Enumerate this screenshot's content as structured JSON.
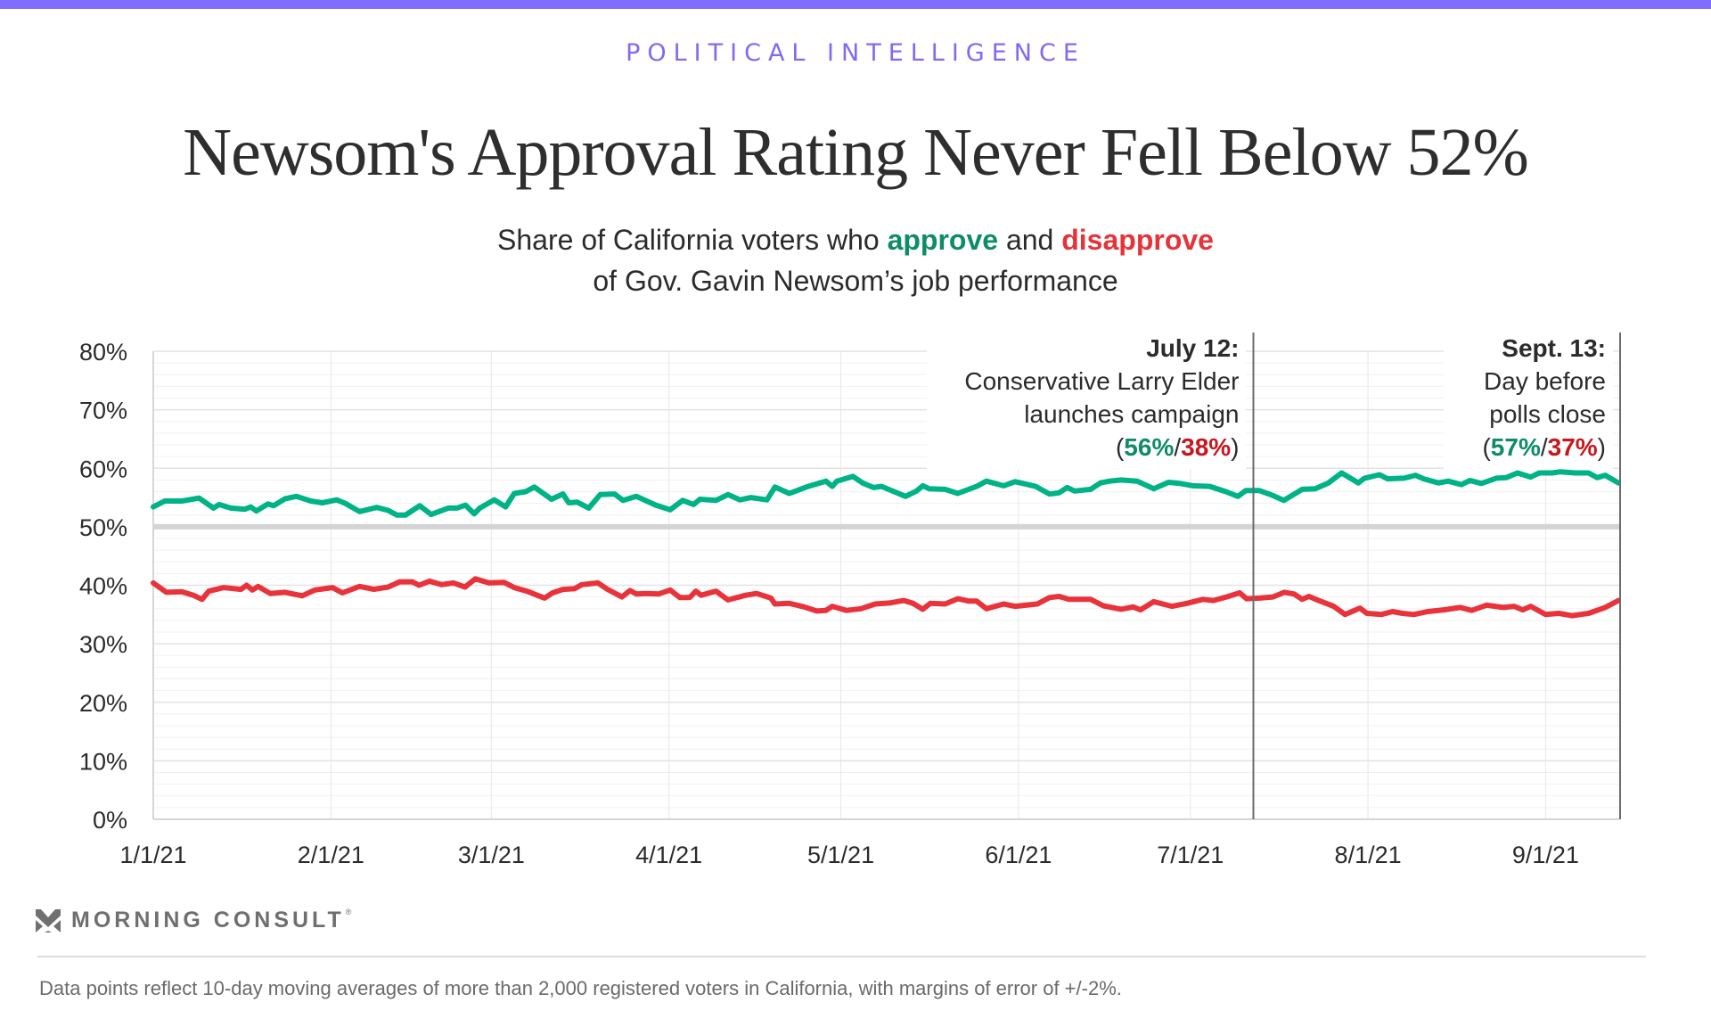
{
  "header": {
    "kicker": "POLITICAL INTELLIGENCE",
    "title": "Newsom's Approval Rating Never Fell Below 52%",
    "subtitle_part1": "Share of California voters who ",
    "subtitle_approve": "approve",
    "subtitle_part2": " and ",
    "subtitle_disapprove": "disapprove",
    "subtitle_line2": "of Gov. Gavin Newsom’s job performance"
  },
  "colors": {
    "accent": "#806CFF",
    "approve_line": "#00B386",
    "disapprove_line": "#E8333B",
    "approve_text": "#0E8C68",
    "disapprove_text": "#C8161E",
    "reference_line": "#d4d4d4"
  },
  "chart_data": {
    "type": "line",
    "title": "Newsom's Approval Rating Never Fell Below 52%",
    "xlabel": "",
    "ylabel": "",
    "x_unit": "days since 1/1/21",
    "xlim": [
      0,
      256
    ],
    "ylim": [
      0,
      80
    ],
    "yticks": [
      0,
      10,
      20,
      30,
      40,
      50,
      60,
      70,
      80
    ],
    "ytick_labels": [
      "0%",
      "10%",
      "20%",
      "30%",
      "40%",
      "50%",
      "60%",
      "70%",
      "80%"
    ],
    "xticks": [
      0,
      31,
      59,
      90,
      120,
      151,
      181,
      212,
      243
    ],
    "xtick_labels": [
      "1/1/21",
      "2/1/21",
      "3/1/21",
      "4/1/21",
      "5/1/21",
      "6/1/21",
      "7/1/21",
      "8/1/21",
      "9/1/21"
    ],
    "grid": true,
    "minor_grid_step": 2,
    "reference_line_y": 50,
    "legend": "none",
    "series": [
      {
        "name": "Approve",
        "color": "#00B386",
        "points": [
          [
            0,
            53.4
          ],
          [
            2,
            54.4
          ],
          [
            5,
            54.4
          ],
          [
            8,
            54.9
          ],
          [
            10.5,
            53.2
          ],
          [
            11.5,
            53.8
          ],
          [
            13.5,
            53.2
          ],
          [
            16,
            53.0
          ],
          [
            17,
            53.4
          ],
          [
            18,
            52.7
          ],
          [
            20,
            53.9
          ],
          [
            21,
            53.6
          ],
          [
            23,
            54.8
          ],
          [
            25,
            55.2
          ],
          [
            27.5,
            54.4
          ],
          [
            29.5,
            54.1
          ],
          [
            32,
            54.6
          ],
          [
            33.5,
            54.0
          ],
          [
            36,
            52.6
          ],
          [
            39,
            53.3
          ],
          [
            41,
            52.8
          ],
          [
            42.5,
            52.0
          ],
          [
            44,
            52.0
          ],
          [
            46.5,
            53.6
          ],
          [
            48.5,
            52.1
          ],
          [
            51.5,
            53.2
          ],
          [
            53,
            53.2
          ],
          [
            54.5,
            53.7
          ],
          [
            56,
            52.2
          ],
          [
            57,
            53.2
          ],
          [
            59.5,
            54.6
          ],
          [
            61.5,
            53.4
          ],
          [
            63,
            55.7
          ],
          [
            65,
            56.0
          ],
          [
            66.5,
            56.8
          ],
          [
            69.5,
            54.7
          ],
          [
            71.5,
            55.6
          ],
          [
            72.5,
            54.1
          ],
          [
            74,
            54.2
          ],
          [
            76,
            53.2
          ],
          [
            78,
            55.5
          ],
          [
            80.5,
            55.6
          ],
          [
            82,
            54.5
          ],
          [
            84.3,
            55.2
          ],
          [
            87.7,
            53.7
          ],
          [
            90.2,
            52.9
          ],
          [
            92.4,
            54.5
          ],
          [
            94.3,
            53.8
          ],
          [
            95.4,
            54.7
          ],
          [
            98.2,
            54.5
          ],
          [
            100.3,
            55.5
          ],
          [
            102.4,
            54.6
          ],
          [
            104.3,
            55.0
          ],
          [
            107.1,
            54.6
          ],
          [
            108.5,
            56.8
          ],
          [
            111,
            55.7
          ],
          [
            114.3,
            56.9
          ],
          [
            117.4,
            57.8
          ],
          [
            118.5,
            56.9
          ],
          [
            119.3,
            57.8
          ],
          [
            122.1,
            58.6
          ],
          [
            123.8,
            57.5
          ],
          [
            125.7,
            56.7
          ],
          [
            127.1,
            56.9
          ],
          [
            131.3,
            55.2
          ],
          [
            133.2,
            56.1
          ],
          [
            134.3,
            57.0
          ],
          [
            135.4,
            56.5
          ],
          [
            138.2,
            56.4
          ],
          [
            140.4,
            55.7
          ],
          [
            143.7,
            56.9
          ],
          [
            145.4,
            57.8
          ],
          [
            148.4,
            57.0
          ],
          [
            150.4,
            57.7
          ],
          [
            154,
            56.9
          ],
          [
            156.4,
            55.6
          ],
          [
            158.1,
            55.8
          ],
          [
            159.5,
            56.7
          ],
          [
            160.8,
            56.1
          ],
          [
            163.6,
            56.4
          ],
          [
            165.3,
            57.5
          ],
          [
            166.9,
            57.8
          ],
          [
            168.9,
            58.0
          ],
          [
            171.7,
            57.8
          ],
          [
            174.6,
            56.5
          ],
          [
            177.2,
            57.6
          ],
          [
            179.2,
            57.4
          ],
          [
            181.5,
            57.0
          ],
          [
            184.4,
            56.9
          ],
          [
            187.2,
            56.0
          ],
          [
            189.3,
            55.2
          ],
          [
            190.7,
            56.2
          ],
          [
            193,
            56.2
          ],
          [
            195,
            55.5
          ],
          [
            197.3,
            54.5
          ],
          [
            200.5,
            56.4
          ],
          [
            202.8,
            56.5
          ],
          [
            205.1,
            57.5
          ],
          [
            207.4,
            59.2
          ],
          [
            210.3,
            57.5
          ],
          [
            211.4,
            58.3
          ],
          [
            214,
            58.9
          ],
          [
            215.4,
            58.2
          ],
          [
            218.3,
            58.3
          ],
          [
            220.3,
            58.8
          ],
          [
            221.7,
            58.2
          ],
          [
            224.3,
            57.5
          ],
          [
            226,
            57.8
          ],
          [
            228.3,
            57.2
          ],
          [
            229.8,
            57.9
          ],
          [
            231.8,
            57.4
          ],
          [
            234.4,
            58.3
          ],
          [
            236.1,
            58.4
          ],
          [
            238.1,
            59.2
          ],
          [
            240.4,
            58.5
          ],
          [
            241.9,
            59.2
          ],
          [
            244.1,
            59.2
          ],
          [
            245.6,
            59.4
          ],
          [
            248.2,
            59.2
          ],
          [
            250.5,
            59.2
          ],
          [
            252,
            58.4
          ],
          [
            253.4,
            58.8
          ],
          [
            255.7,
            57.5
          ]
        ]
      },
      {
        "name": "Disapprove",
        "color": "#E8333B",
        "points": [
          [
            0,
            40.4
          ],
          [
            2.3,
            38.8
          ],
          [
            5,
            38.9
          ],
          [
            7,
            38.3
          ],
          [
            8.5,
            37.6
          ],
          [
            9.7,
            39.0
          ],
          [
            12.3,
            39.6
          ],
          [
            15.3,
            39.3
          ],
          [
            16.3,
            40.0
          ],
          [
            17.3,
            39.2
          ],
          [
            18.3,
            39.8
          ],
          [
            20.4,
            38.6
          ],
          [
            23,
            38.8
          ],
          [
            26,
            38.2
          ],
          [
            28.2,
            39.2
          ],
          [
            31.3,
            39.6
          ],
          [
            33,
            38.7
          ],
          [
            36,
            39.8
          ],
          [
            38.5,
            39.3
          ],
          [
            41,
            39.7
          ],
          [
            43,
            40.6
          ],
          [
            45.2,
            40.6
          ],
          [
            46.4,
            40.0
          ],
          [
            48.2,
            40.7
          ],
          [
            50.3,
            40.1
          ],
          [
            52.4,
            40.4
          ],
          [
            54.4,
            39.7
          ],
          [
            56.2,
            41.1
          ],
          [
            58.6,
            40.4
          ],
          [
            61.2,
            40.5
          ],
          [
            63,
            39.6
          ],
          [
            65.2,
            39.0
          ],
          [
            68.3,
            37.8
          ],
          [
            69.7,
            38.7
          ],
          [
            71.5,
            39.3
          ],
          [
            73.5,
            39.4
          ],
          [
            74.8,
            40.1
          ],
          [
            77.6,
            40.4
          ],
          [
            79.3,
            39.3
          ],
          [
            81.8,
            38.0
          ],
          [
            83.2,
            39.1
          ],
          [
            84.3,
            38.5
          ],
          [
            86,
            38.6
          ],
          [
            88.2,
            38.5
          ],
          [
            90.2,
            39.2
          ],
          [
            91.9,
            37.9
          ],
          [
            93.6,
            37.9
          ],
          [
            94.7,
            39.0
          ],
          [
            95.6,
            38.3
          ],
          [
            98.2,
            39.0
          ],
          [
            100.3,
            37.5
          ],
          [
            103.4,
            38.3
          ],
          [
            105.3,
            38.6
          ],
          [
            107.8,
            37.8
          ],
          [
            108.5,
            36.8
          ],
          [
            111,
            36.9
          ],
          [
            113.6,
            36.3
          ],
          [
            115.8,
            35.6
          ],
          [
            117.4,
            35.7
          ],
          [
            118.5,
            36.4
          ],
          [
            121,
            35.7
          ],
          [
            123.5,
            36.0
          ],
          [
            126,
            36.8
          ],
          [
            128.7,
            37.0
          ],
          [
            131,
            37.4
          ],
          [
            132.6,
            36.9
          ],
          [
            134.3,
            35.9
          ],
          [
            135.6,
            36.9
          ],
          [
            138.2,
            36.8
          ],
          [
            140.4,
            37.7
          ],
          [
            142.3,
            37.3
          ],
          [
            143.7,
            37.3
          ],
          [
            145.4,
            36.0
          ],
          [
            148.4,
            36.8
          ],
          [
            150.4,
            36.4
          ],
          [
            154.3,
            36.8
          ],
          [
            156.4,
            37.9
          ],
          [
            158.1,
            38.1
          ],
          [
            159.8,
            37.6
          ],
          [
            163.6,
            37.6
          ],
          [
            165.8,
            36.5
          ],
          [
            168.9,
            35.9
          ],
          [
            171,
            36.3
          ],
          [
            172.3,
            35.8
          ],
          [
            174.6,
            37.2
          ],
          [
            177.8,
            36.4
          ],
          [
            180.4,
            36.9
          ],
          [
            183.2,
            37.6
          ],
          [
            185,
            37.4
          ],
          [
            187.3,
            38.0
          ],
          [
            189.6,
            38.7
          ],
          [
            190.8,
            37.7
          ],
          [
            193.1,
            37.8
          ],
          [
            195.4,
            38.0
          ],
          [
            197.4,
            38.8
          ],
          [
            199.1,
            38.5
          ],
          [
            200.5,
            37.6
          ],
          [
            201.7,
            38.1
          ],
          [
            203.4,
            37.4
          ],
          [
            206,
            36.4
          ],
          [
            208,
            35.0
          ],
          [
            210.6,
            36.1
          ],
          [
            211.8,
            35.2
          ],
          [
            214.3,
            35.0
          ],
          [
            216.3,
            35.5
          ],
          [
            218,
            35.2
          ],
          [
            220,
            35.0
          ],
          [
            222.4,
            35.5
          ],
          [
            225.2,
            35.8
          ],
          [
            228.1,
            36.2
          ],
          [
            230.1,
            35.7
          ],
          [
            232.7,
            36.6
          ],
          [
            235.6,
            36.2
          ],
          [
            237.5,
            36.4
          ],
          [
            239,
            35.8
          ],
          [
            240.4,
            36.4
          ],
          [
            243,
            35.0
          ],
          [
            245.3,
            35.2
          ],
          [
            247.6,
            34.8
          ],
          [
            250.5,
            35.2
          ],
          [
            253.4,
            36.2
          ],
          [
            255.7,
            37.4
          ]
        ]
      }
    ],
    "annotations": [
      {
        "day": 192,
        "date_label": "July 12:",
        "lines": [
          "Conservative Larry Elder",
          "launches campaign"
        ],
        "approve": "56%",
        "disapprove": "38%"
      },
      {
        "day": 256,
        "date_label": "Sept. 13:",
        "lines": [
          "Day before",
          "polls close"
        ],
        "approve": "57%",
        "disapprove": "37%"
      }
    ]
  },
  "footer": {
    "logo_text": "MORNING CONSULT",
    "logo_mark": "®",
    "logo_icon": "morning-consult-chevron-icon",
    "footnote": "Data points reflect 10-day moving averages of more than 2,000 registered voters in California, with margins of error of +/-2%."
  }
}
